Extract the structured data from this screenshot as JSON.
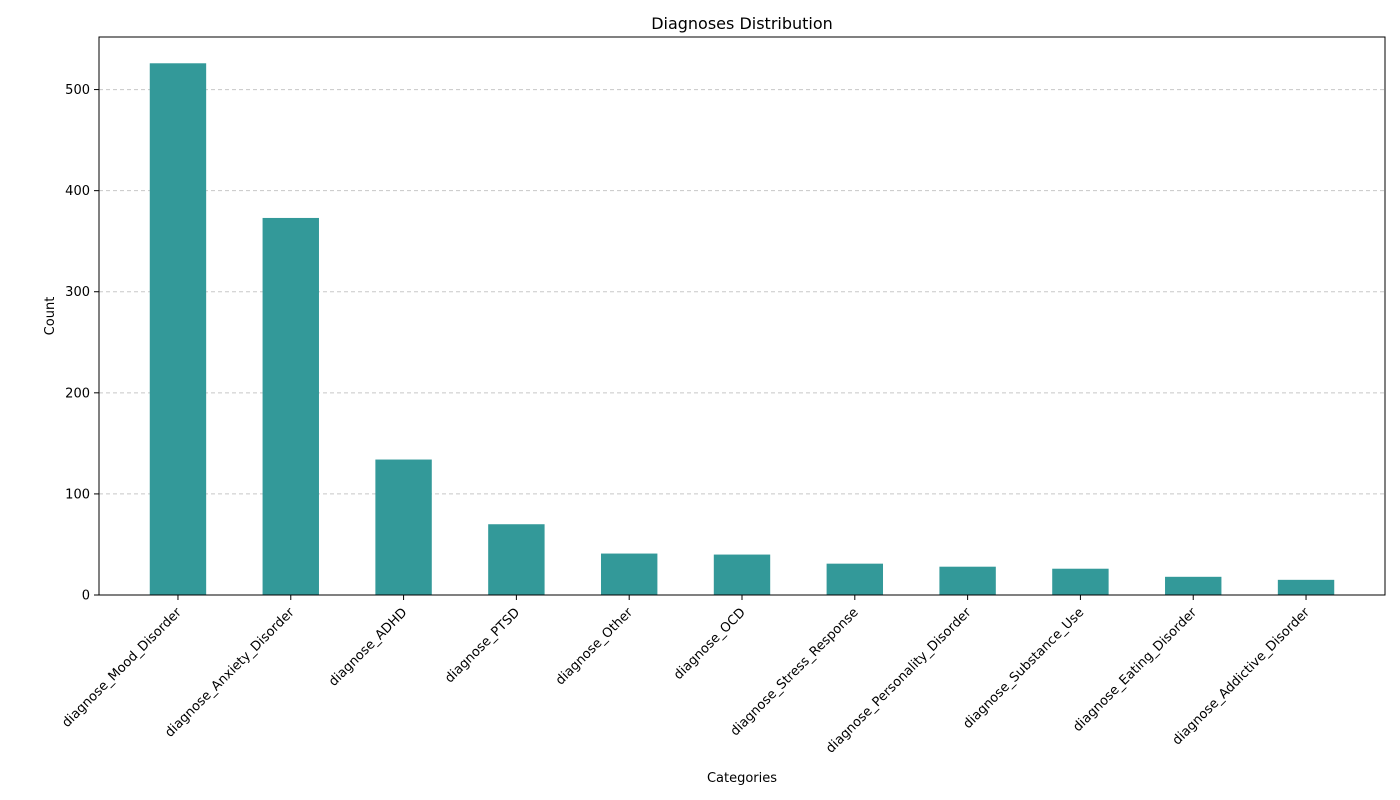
{
  "chart_data": {
    "type": "bar",
    "title": "Diagnoses Distribution",
    "xlabel": "Categories",
    "ylabel": "Count",
    "categories": [
      "diagnose_Mood_Disorder",
      "diagnose_Anxiety_Disorder",
      "diagnose_ADHD",
      "diagnose_PTSD",
      "diagnose_Other",
      "diagnose_OCD",
      "diagnose_Stress_Response",
      "diagnose_Personality_Disorder",
      "diagnose_Substance_Use",
      "diagnose_Eating_Disorder",
      "diagnose_Addictive_Disorder"
    ],
    "values": [
      526,
      373,
      134,
      70,
      41,
      40,
      31,
      28,
      26,
      18,
      15
    ],
    "ylim": [
      0,
      552
    ],
    "yticks": [
      0,
      100,
      200,
      300,
      400,
      500
    ],
    "grid": "y-dashed",
    "bar_color": "#339999",
    "grid_color": "#c8c8c8"
  }
}
